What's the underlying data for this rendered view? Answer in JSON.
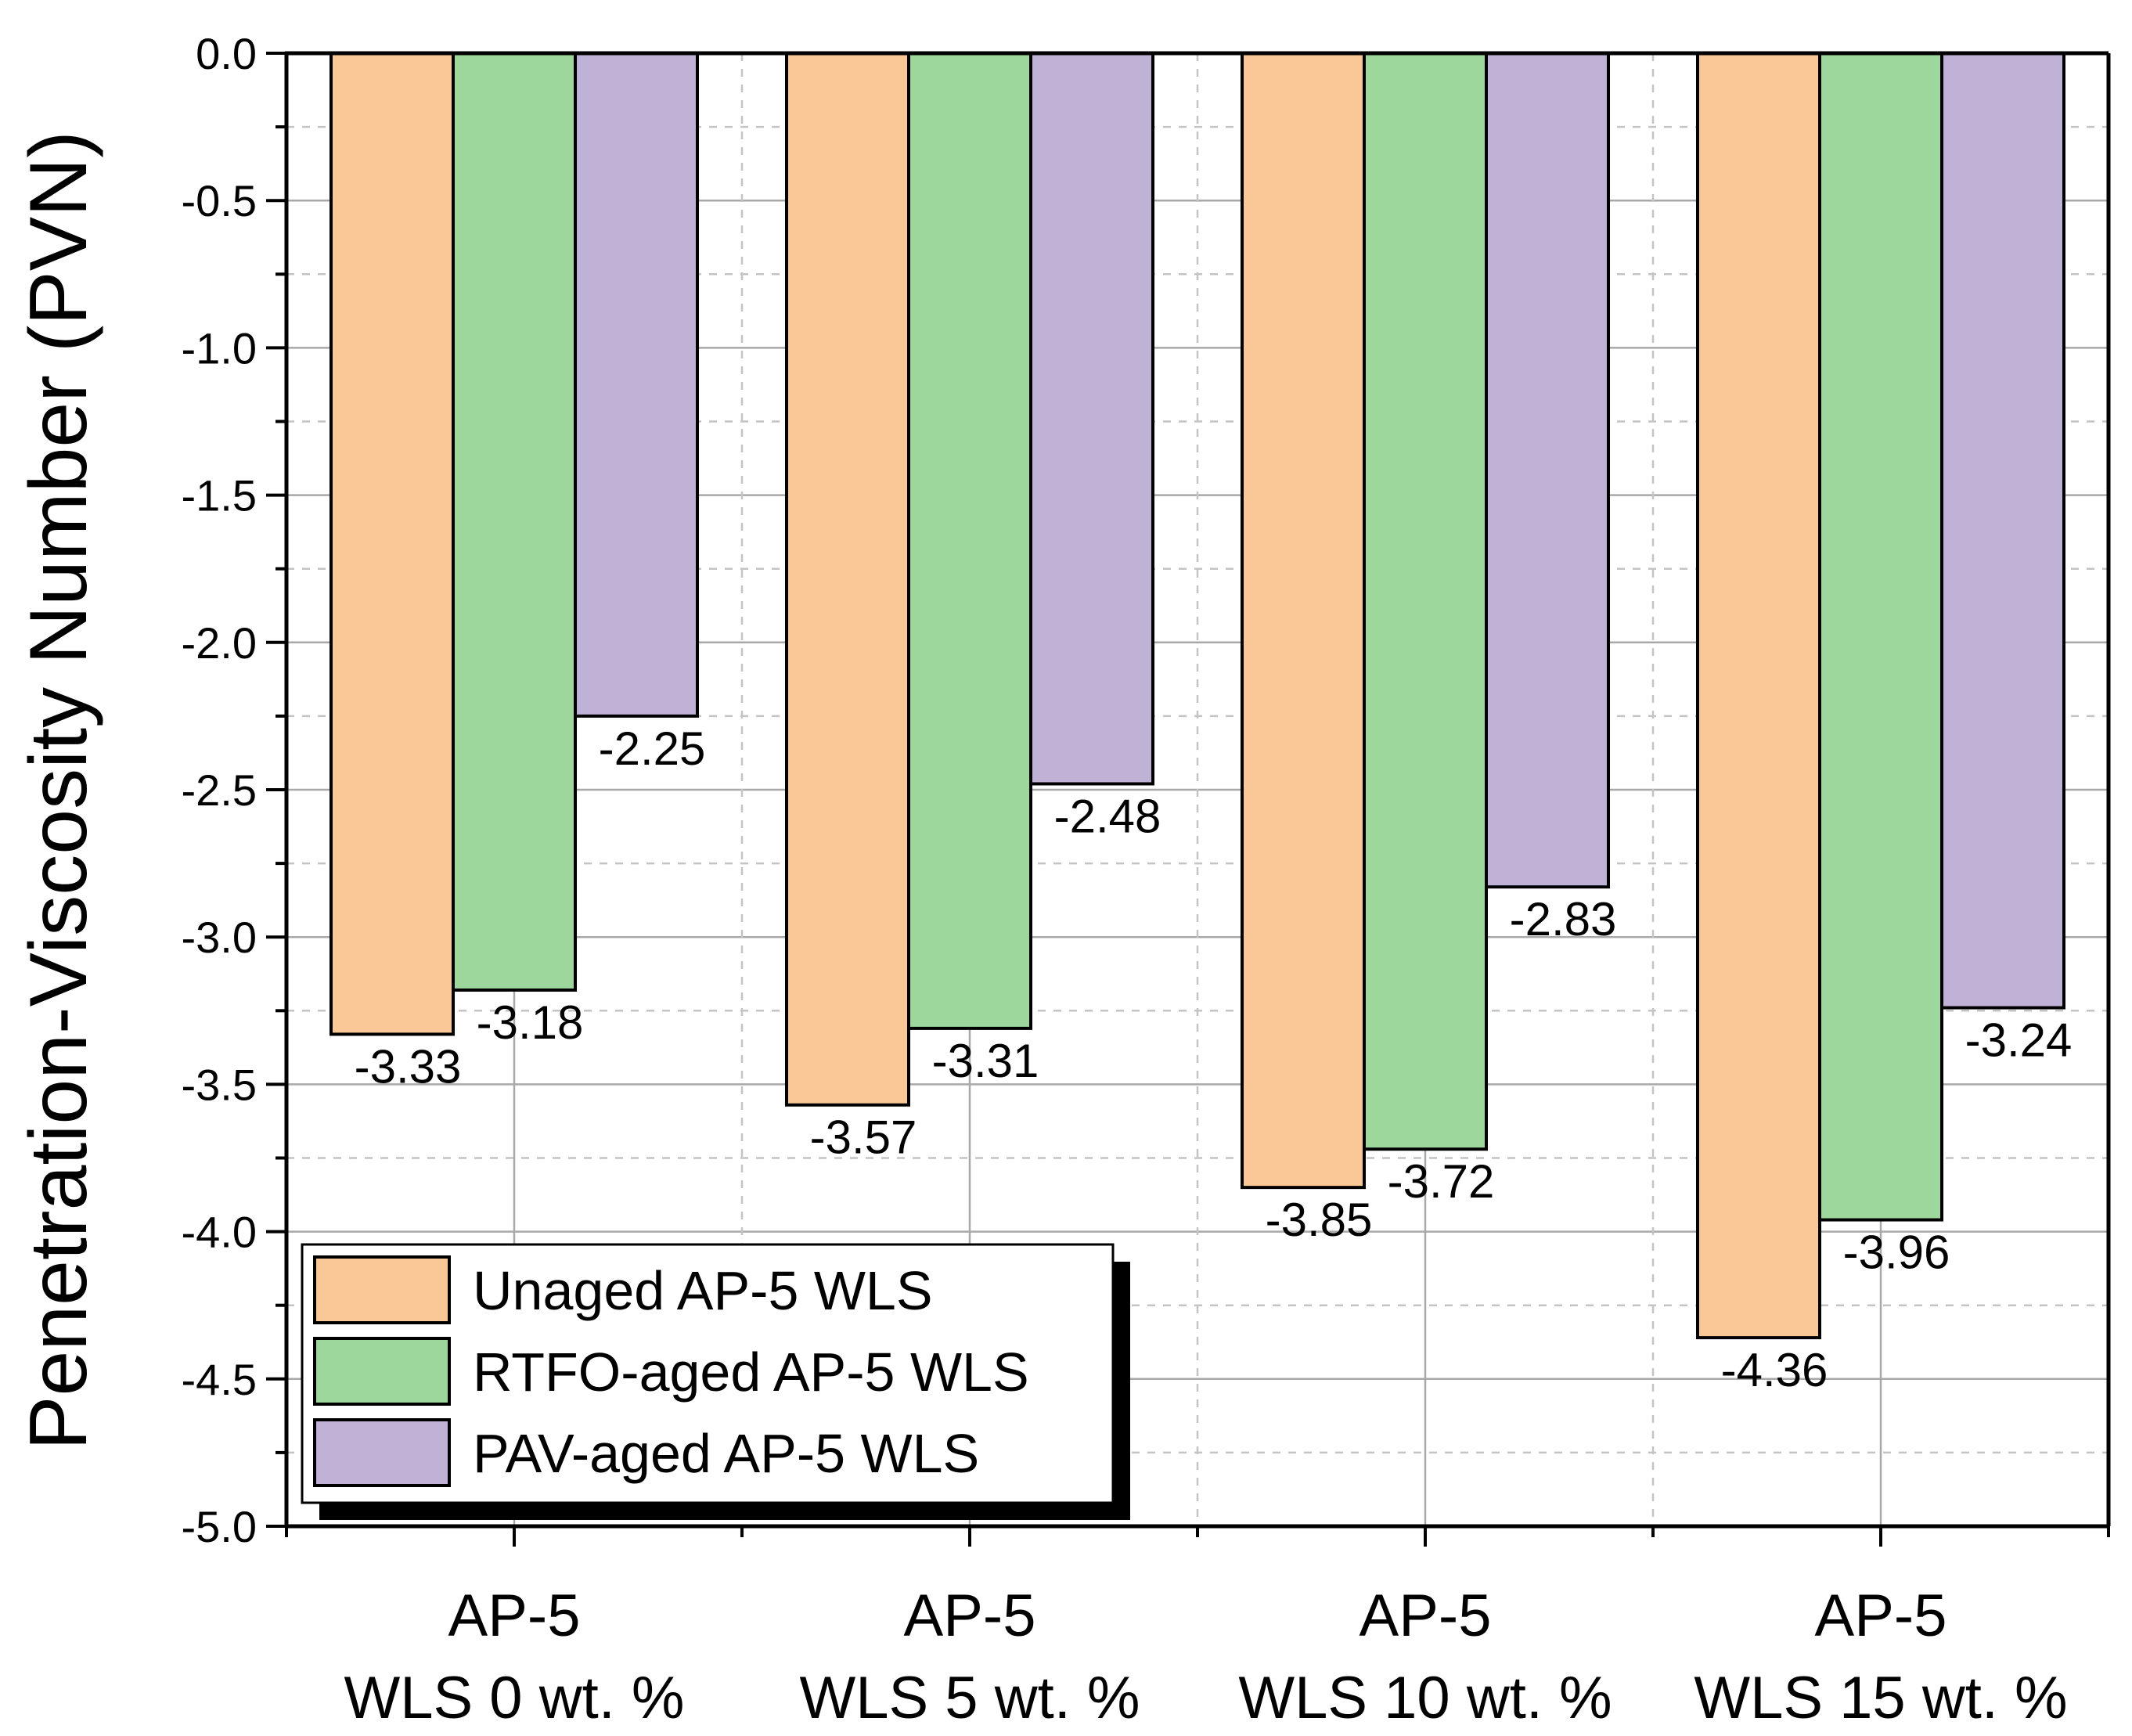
{
  "chart_data": {
    "type": "bar",
    "title": "",
    "xlabel": "",
    "ylabel": "Penetration-Viscosity Number (PVN)",
    "ylim": [
      -5.0,
      0.0
    ],
    "yticks": [
      "0.0",
      "-0.5",
      "-1.0",
      "-1.5",
      "-2.0",
      "-2.5",
      "-3.0",
      "-3.5",
      "-4.0",
      "-4.5",
      "-5.0"
    ],
    "grid": true,
    "legend_position": "bottom-left",
    "categories": [
      {
        "line1": "AP-5",
        "line2": "WLS 0 wt. %"
      },
      {
        "line1": "AP-5",
        "line2": "WLS 5 wt. %"
      },
      {
        "line1": "AP-5",
        "line2": "WLS 10 wt. %"
      },
      {
        "line1": "AP-5",
        "line2": "WLS 15 wt. %"
      }
    ],
    "series": [
      {
        "name": "Unaged AP-5 WLS",
        "color": "#f9c896",
        "values": [
          -3.33,
          -3.57,
          -3.85,
          -4.36
        ],
        "labels": [
          "-3.33",
          "-3.57",
          "-3.85",
          "-4.36"
        ]
      },
      {
        "name": "RTFO-aged AP-5 WLS",
        "color": "#9dd79c",
        "values": [
          -3.18,
          -3.31,
          -3.72,
          -3.96
        ],
        "labels": [
          "-3.18",
          "-3.31",
          "-3.72",
          "-3.96"
        ]
      },
      {
        "name": "PAV-aged AP-5 WLS",
        "color": "#c0b1d6",
        "values": [
          -2.25,
          -2.48,
          -2.83,
          -3.24
        ],
        "labels": [
          "-2.25",
          "-2.48",
          "-2.83",
          "-3.24"
        ]
      }
    ]
  }
}
